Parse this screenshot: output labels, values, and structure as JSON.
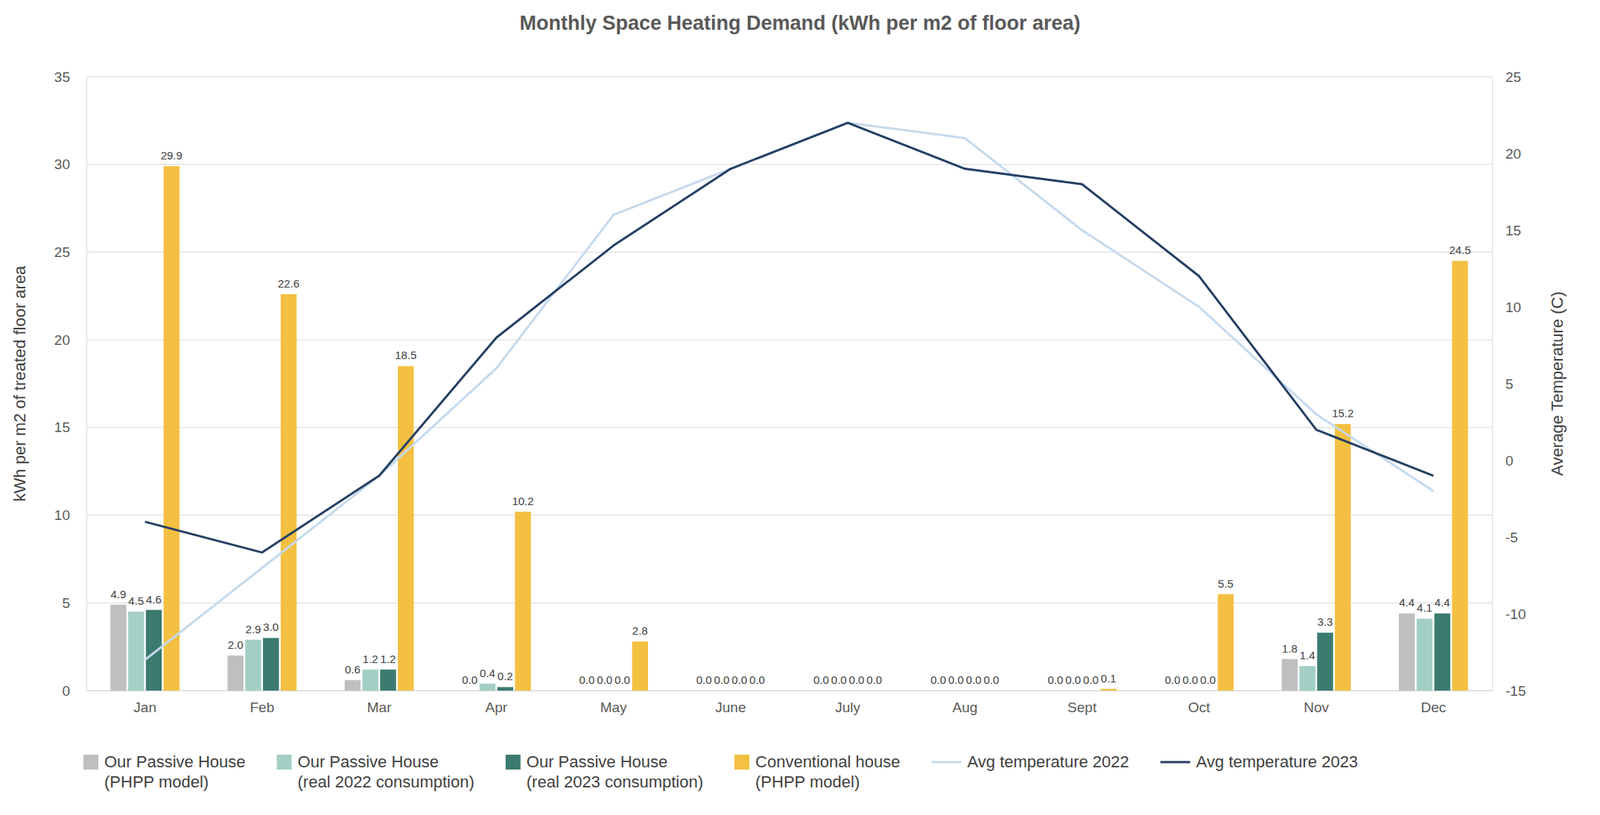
{
  "chart_data": {
    "type": "bar",
    "title": "Monthly Space Heating Demand (kWh per m2 of floor area)",
    "ylabel": "kWh per m2 of treated floor area",
    "y2label": "Average Temperature (C)",
    "categories": [
      "Jan",
      "Feb",
      "Mar",
      "Apr",
      "May",
      "June",
      "July",
      "Aug",
      "Sept",
      "Oct",
      "Nov",
      "Dec"
    ],
    "ylim": [
      0,
      35
    ],
    "yticks": [
      0,
      5,
      10,
      15,
      20,
      25,
      30,
      35
    ],
    "y2lim": [
      -15,
      25
    ],
    "y2ticks": [
      -15,
      -10,
      -5,
      0,
      5,
      10,
      15,
      20,
      25
    ],
    "grid": true,
    "data_labels": true,
    "legend": "bottom",
    "series": [
      {
        "name": "Our Passive House (PHPP model)",
        "color": "#bfbfbf",
        "values": [
          4.9,
          2.0,
          0.6,
          0.0,
          0.0,
          0.0,
          0.0,
          0.0,
          0.0,
          0.0,
          1.8,
          4.4
        ],
        "value_labels": [
          "4.9",
          "2.0",
          "0.6",
          "0.0",
          "0.0",
          "0.0",
          "0.0",
          "0.0",
          "0.0",
          "0.0",
          "1.8",
          "4.4"
        ]
      },
      {
        "name": "Our Passive House (real 2022 consumption)",
        "color": "#a3cfc6",
        "values": [
          4.5,
          2.9,
          1.2,
          0.4,
          0.0,
          0.0,
          0.0,
          0.0,
          0.0,
          0.0,
          1.4,
          4.1
        ],
        "value_labels": [
          "4.5",
          "2.9",
          "1.2",
          "0.4",
          "0.0",
          "0.0",
          "0.0",
          "0.0",
          "0.0",
          "0.0",
          "1.4",
          "4.1"
        ]
      },
      {
        "name": "Our Passive House (real 2023 consumption)",
        "color": "#3b7b6f",
        "values": [
          4.6,
          3.0,
          1.2,
          0.2,
          0.0,
          0.0,
          0.0,
          0.0,
          0.0,
          0.0,
          3.3,
          4.4
        ],
        "value_labels": [
          "4.6",
          "3.0",
          "1.2",
          "0.2",
          "0.0",
          "0.0",
          "0.0",
          "0.0",
          "0.0",
          "0.0",
          "3.3",
          "4.4"
        ]
      },
      {
        "name": "Conventional house (PHPP model)",
        "color": "#f4c042",
        "values": [
          29.9,
          22.6,
          18.5,
          10.2,
          2.8,
          0.0,
          0.0,
          0.0,
          0.1,
          5.5,
          15.2,
          24.5
        ],
        "value_labels": [
          "29.9",
          "22.6",
          "18.5",
          "10.2",
          "2.8",
          "0.0",
          "0.0",
          "0.0",
          "0.1",
          "5.5",
          "15.2",
          "24.5"
        ]
      },
      {
        "name": "Avg temperature 2022",
        "color": "#c5d9ec",
        "type": "line",
        "axis": "y2",
        "values": [
          -13,
          -7,
          -1,
          6,
          16,
          19,
          22,
          21,
          15,
          10,
          3,
          -2
        ]
      },
      {
        "name": "Avg temperature 2023",
        "color": "#243f63",
        "type": "line",
        "axis": "y2",
        "values": [
          -4,
          -6,
          -1,
          8,
          14,
          19,
          22,
          19,
          18,
          12,
          2,
          -1
        ]
      }
    ]
  }
}
